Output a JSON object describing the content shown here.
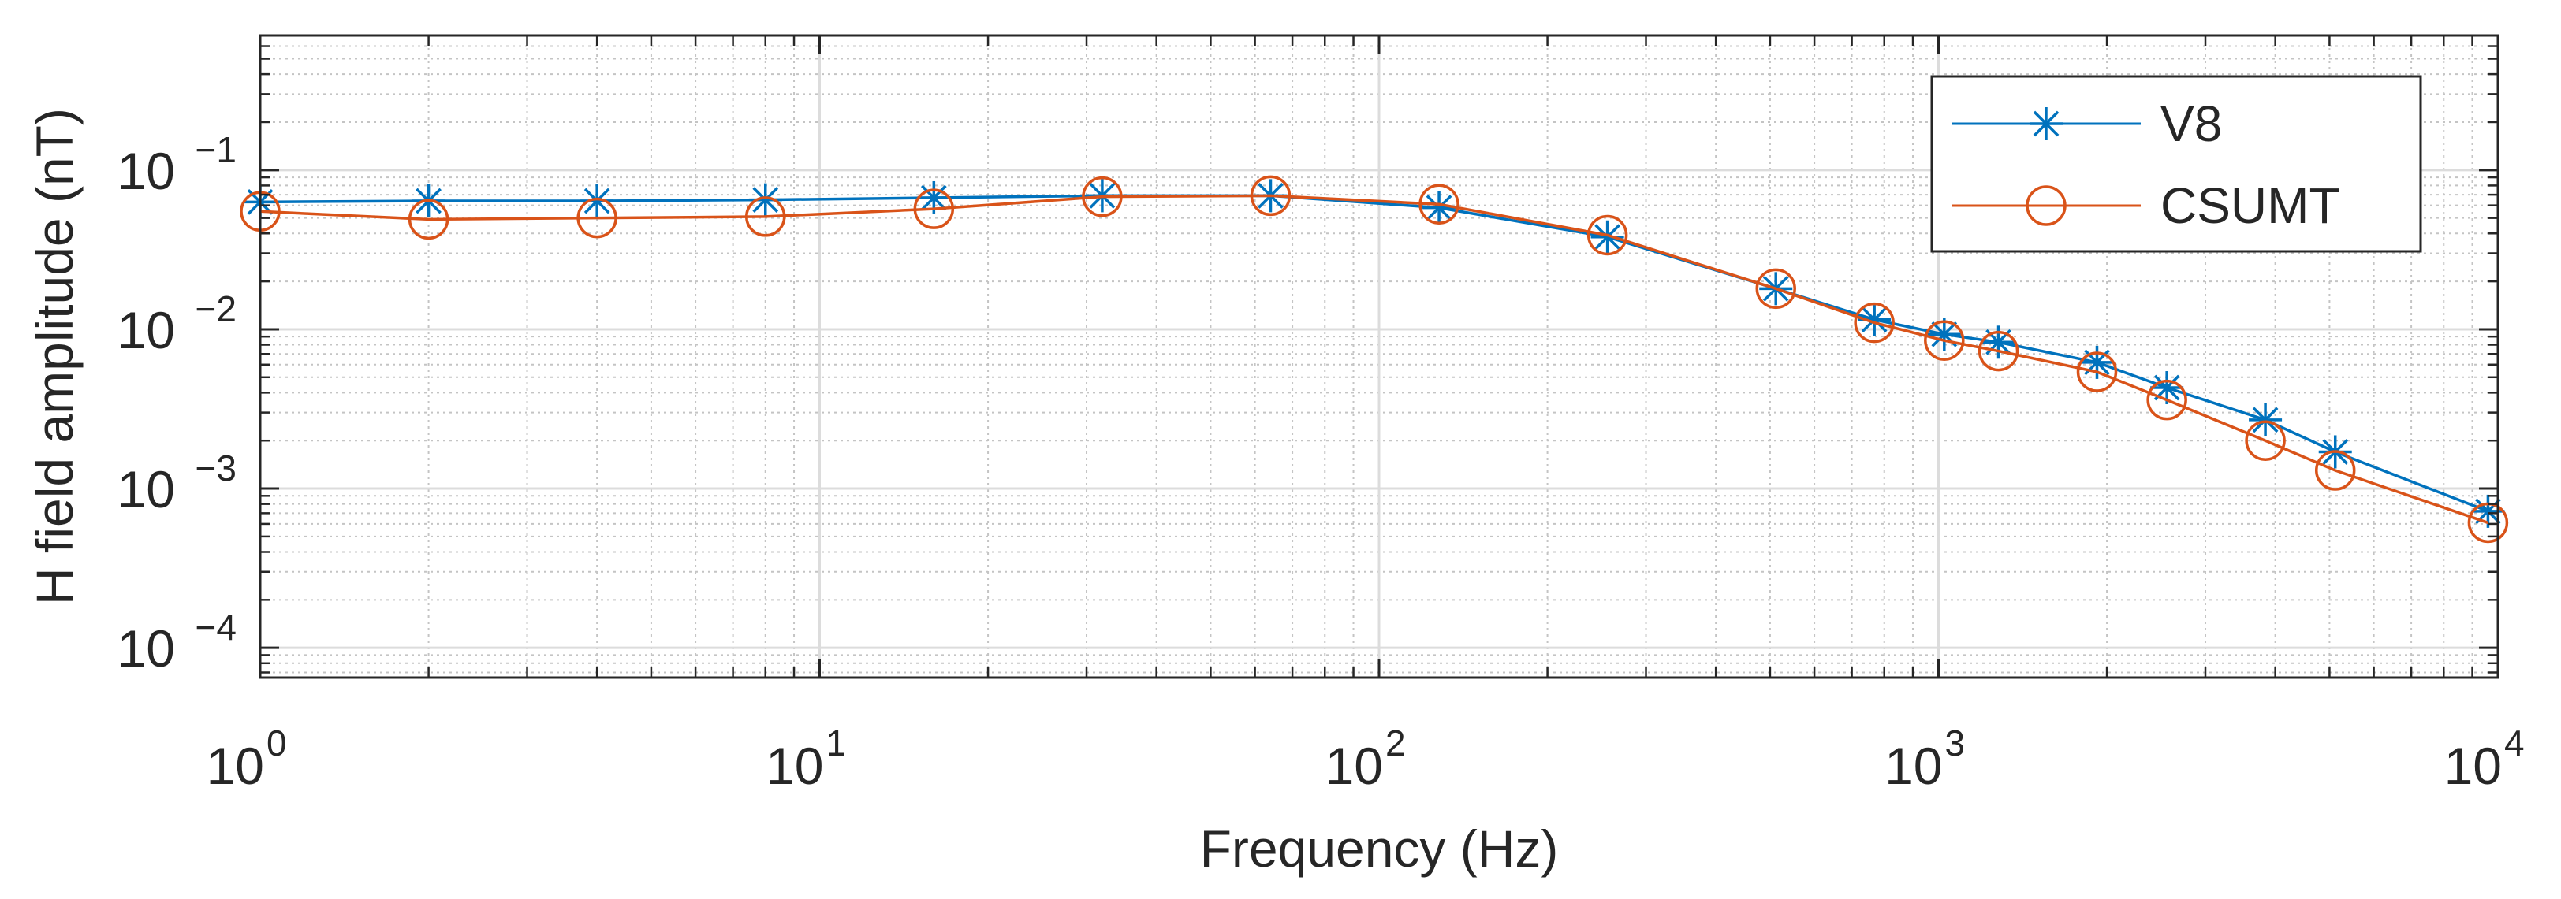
{
  "chart_data": {
    "type": "line",
    "title": "",
    "xlabel": "Frequency (Hz)",
    "ylabel": "H field amplitude (nT)",
    "xscale": "log",
    "yscale": "log",
    "xlim": [
      1,
      10000
    ],
    "ylim": [
      6.5e-05,
      0.7
    ],
    "grid": true,
    "minor_grid": true,
    "legend_position": "top-right",
    "x_ticks": [
      {
        "base": "10",
        "exp": "0",
        "value": 1
      },
      {
        "base": "10",
        "exp": "1",
        "value": 10
      },
      {
        "base": "10",
        "exp": "2",
        "value": 100
      },
      {
        "base": "10",
        "exp": "3",
        "value": 1000
      },
      {
        "base": "10",
        "exp": "4",
        "value": 10000
      }
    ],
    "y_ticks": [
      {
        "base": "10",
        "exp": "−4",
        "value": 0.0001
      },
      {
        "base": "10",
        "exp": "−3",
        "value": 0.001
      },
      {
        "base": "10",
        "exp": "−2",
        "value": 0.01
      },
      {
        "base": "10",
        "exp": "−1",
        "value": 0.1
      }
    ],
    "series": [
      {
        "name": "V8",
        "color": "#0072BD",
        "marker": "asterisk",
        "x": [
          1,
          2,
          4,
          8,
          16,
          32,
          64,
          128,
          256,
          512,
          768,
          1024,
          1280,
          1920,
          2560,
          3840,
          5120,
          9600
        ],
        "y": [
          0.063,
          0.064,
          0.064,
          0.065,
          0.067,
          0.069,
          0.069,
          0.058,
          0.038,
          0.018,
          0.0115,
          0.0093,
          0.0083,
          0.0062,
          0.0043,
          0.0027,
          0.0017,
          0.00072
        ]
      },
      {
        "name": "CSUMT",
        "color": "#D95319",
        "marker": "circle",
        "x": [
          1,
          2,
          4,
          8,
          16,
          32,
          64,
          128,
          256,
          512,
          768,
          1024,
          1280,
          1920,
          2560,
          3840,
          5120,
          9600
        ],
        "y": [
          0.055,
          0.049,
          0.05,
          0.051,
          0.057,
          0.068,
          0.069,
          0.061,
          0.039,
          0.018,
          0.011,
          0.0085,
          0.0073,
          0.0054,
          0.0036,
          0.002,
          0.0013,
          0.00061
        ]
      }
    ]
  }
}
